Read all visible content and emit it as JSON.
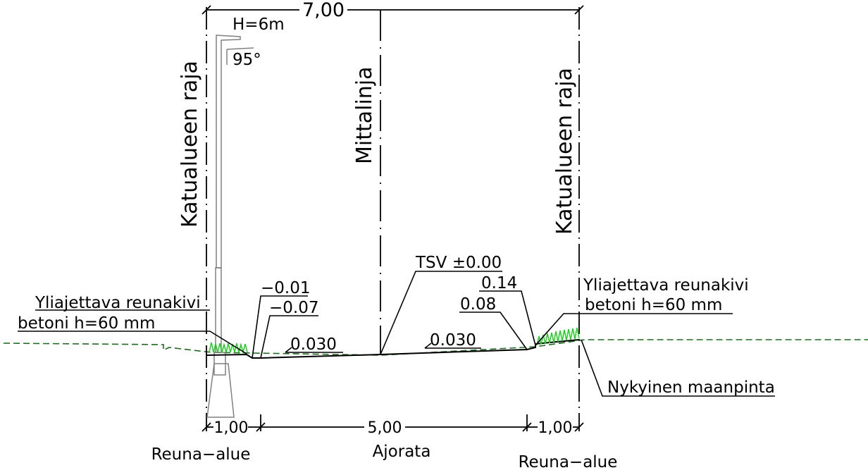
{
  "labels": {
    "total_width": "7,00",
    "pole_height": "H=6m",
    "pole_angle": "95°",
    "boundary_left": "Katualueen raja",
    "boundary_right": "Katualueen raja",
    "centerline": "Mittalinja",
    "curb_left_line1": "Yliajettava reunakivi",
    "curb_left_line2": "betoni h=60 mm",
    "curb_right_line1": "Yliajettava reunakivi",
    "curb_right_line2": "betoni h=60 mm",
    "elev_left_top": "−0.01",
    "elev_left_bottom": "−0.07",
    "tsv": "TSV ±0.00",
    "elev_right_top": "0.14",
    "elev_right_bottom": "0.08",
    "slope_left": "0.030",
    "slope_right": "0.030",
    "existing_ground": "Nykyinen maanpinta",
    "dim_left": "1,00",
    "dim_middle": "5,00",
    "dim_right": "1,00",
    "zone_left": "Reuna−alue",
    "zone_middle": "Ajorata",
    "zone_right": "Reuna−alue"
  },
  "colors": {
    "line": "#000000",
    "existing_ground": "#1e6b1e",
    "grass": "#22cc22",
    "pole": "#808080"
  }
}
